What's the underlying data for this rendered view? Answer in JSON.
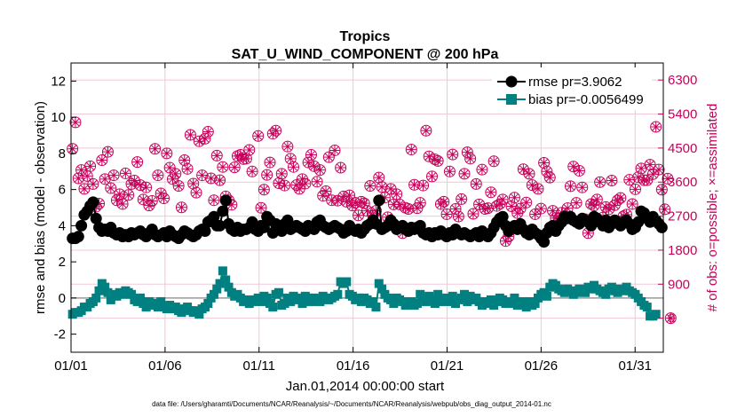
{
  "chart_data": {
    "type": "line",
    "title": "Tropics",
    "subtitle": "SAT_U_WIND_COMPONENT @ 200 hPa",
    "xlabel": "Jan.01,2014 00:00:00 start",
    "ylabel": "rmse and bias (model - observation)",
    "y2label": "# of obs: o=possible; ×=assimilated",
    "footnote": "data file: /Users/gharamti/Documents/NCAR/Reanalysis/~/Documents/NCAR/Reanalysis/webpub/obs_diag_output_2014-01.nc",
    "xlim": [
      1,
      32.5
    ],
    "ylim": [
      -3,
      13
    ],
    "y2lim": [
      -900,
      6750
    ],
    "x_ticks": [
      1,
      6,
      11,
      16,
      21,
      26,
      31
    ],
    "x_tick_labels": [
      "01/01",
      "01/06",
      "01/11",
      "01/16",
      "01/21",
      "01/26",
      "01/31"
    ],
    "y_ticks": [
      -2,
      0,
      2,
      4,
      6,
      8,
      10,
      12
    ],
    "y2_ticks": [
      0,
      900,
      1800,
      2700,
      3600,
      4500,
      5400,
      6300
    ],
    "grid": true,
    "legend_position": "top-right",
    "colors": {
      "rmse": "#000000",
      "bias": "#008080",
      "obs": "#c8005a",
      "zero_line": "#999999",
      "grid": "#f0c8d8"
    },
    "series": [
      {
        "name": "rmse",
        "legend_label": "rmse pr=3.9062",
        "style": "line-circle-markers",
        "values": [
          3.3,
          3.3,
          3.4,
          4.0,
          4.6,
          4.8,
          5.1,
          5.3,
          4.4,
          3.9,
          3.7,
          3.8,
          3.7,
          3.9,
          3.6,
          3.5,
          3.6,
          3.4,
          3.5,
          3.4,
          3.6,
          3.5,
          3.6,
          3.7,
          3.5,
          3.4,
          3.6,
          3.8,
          3.5,
          3.4,
          3.5,
          3.6,
          3.4,
          3.7,
          3.5,
          3.4,
          3.3,
          3.5,
          3.7,
          3.6,
          3.5,
          3.4,
          3.5,
          3.7,
          3.8,
          3.7,
          4.2,
          4.3,
          4.5,
          4.0,
          4.0,
          4.8,
          5.4,
          4.1,
          3.8,
          3.7,
          3.9,
          3.7,
          3.8,
          3.8,
          3.9,
          4.2,
          3.8,
          3.7,
          4.0,
          3.9,
          4.5,
          4.3,
          3.6,
          4.1,
          3.8,
          3.7,
          4.1,
          4.3,
          3.8,
          3.9,
          4.0,
          3.9,
          3.8,
          3.7,
          4.0,
          3.9,
          3.8,
          4.2,
          4.3,
          4.0,
          3.9,
          3.8,
          3.9,
          4.0,
          3.9,
          3.8,
          3.6,
          3.7,
          4.0,
          3.8,
          3.7,
          3.8,
          3.6,
          3.8,
          4.0,
          4.1,
          4.3,
          4.1,
          5.4,
          3.8,
          3.9,
          4.0,
          4.3,
          4.1,
          3.8,
          3.9,
          4.0,
          3.8,
          3.7,
          3.9,
          3.8,
          3.9,
          4.0,
          3.6,
          3.5,
          3.6,
          3.4,
          3.6,
          3.5,
          3.7,
          3.5,
          3.4,
          3.6,
          3.5,
          3.8,
          3.6,
          3.5,
          3.6,
          3.5,
          3.4,
          3.5,
          3.6,
          3.4,
          3.7,
          3.5,
          3.4,
          3.6,
          3.9,
          4.2,
          4.4,
          4.5,
          4.0,
          3.7,
          3.9,
          4.0,
          3.8,
          4.1,
          3.8,
          3.6,
          3.5,
          3.8,
          3.6,
          3.5,
          3.3,
          3.1,
          3.6,
          3.9,
          4.0,
          3.7,
          4.0,
          4.2,
          4.5,
          4.4,
          4.5,
          4.3,
          4.2,
          4.1,
          4.4,
          4.3,
          4.2,
          4.0,
          4.5,
          4.4,
          4.2,
          4.0,
          4.3,
          3.9,
          4.1,
          4.3,
          4.2,
          4.0,
          4.2,
          4.3,
          4.1,
          3.8,
          3.9,
          4.2,
          4.8,
          4.7,
          4.4,
          4.2,
          4.5,
          4.3,
          4.1,
          3.9
        ]
      },
      {
        "name": "bias",
        "legend_label": "bias pr=-0.0056499",
        "style": "line-square-markers",
        "values": [
          -0.9,
          -0.8,
          -0.8,
          -0.7,
          -0.5,
          -0.5,
          -0.3,
          -0.2,
          0.0,
          0.4,
          0.8,
          0.6,
          0.3,
          -0.1,
          0.2,
          0.1,
          0.3,
          0.2,
          0.4,
          0.3,
          0.2,
          -0.1,
          -0.2,
          0.0,
          -0.3,
          -0.5,
          -0.2,
          -0.4,
          -0.3,
          -0.5,
          -0.2,
          -0.5,
          -0.6,
          -0.4,
          -0.6,
          -0.5,
          -0.7,
          -0.8,
          -0.6,
          -0.5,
          -0.7,
          -0.8,
          -0.7,
          -0.9,
          -0.6,
          -0.5,
          -0.3,
          0.0,
          0.2,
          0.5,
          0.8,
          1.5,
          1.0,
          0.6,
          0.3,
          0.1,
          0.2,
          0.0,
          -0.2,
          -0.1,
          -0.3,
          -0.2,
          -0.1,
          0.0,
          -0.2,
          0.1,
          0.0,
          -0.3,
          -0.5,
          0.2,
          0.3,
          -0.4,
          -0.3,
          0.0,
          -0.2,
          0.1,
          -0.1,
          0.0,
          -0.3,
          0.1,
          0.0,
          -0.2,
          0.0,
          -0.1,
          -0.2,
          0.1,
          0.0,
          -0.1,
          0.0,
          0.1,
          0.2,
          0.9,
          0.8,
          0.9,
          0.2,
          0.1,
          -0.1,
          0.0,
          -0.2,
          0.0,
          -0.1,
          -0.3,
          -0.2,
          -0.5,
          0.8,
          0.5,
          0.2,
          0.0,
          -0.1,
          -0.3,
          0.0,
          -0.1,
          -0.2,
          -0.4,
          -0.3,
          -0.2,
          -0.4,
          -0.3,
          0.2,
          0.0,
          -0.2,
          0.1,
          -0.1,
          -0.3,
          0.2,
          -0.2,
          -0.1,
          0.0,
          -0.2,
          0.1,
          -0.3,
          -0.1,
          0.0,
          0.2,
          -0.2,
          0.1,
          -0.1,
          0.0,
          -0.2,
          -0.4,
          -0.2,
          -0.3,
          -0.1,
          -0.4,
          -0.2,
          0.0,
          -0.1,
          -0.3,
          -0.2,
          -0.3,
          0.0,
          -0.4,
          -0.2,
          -0.3,
          -0.5,
          -0.2,
          -0.4,
          -0.3,
          0.0,
          0.2,
          0.3,
          0.1,
          0.6,
          0.8,
          0.7,
          0.5,
          0.4,
          0.3,
          0.5,
          0.4,
          0.2,
          0.3,
          0.5,
          0.4,
          0.3,
          0.6,
          0.5,
          0.7,
          0.5,
          0.4,
          0.3,
          0.2,
          0.5,
          0.6,
          0.4,
          0.3,
          0.5,
          0.4,
          0.6,
          0.4,
          0.3,
          0.2,
          0.0,
          -0.2,
          -0.4,
          -0.5,
          -1.0,
          -1.0,
          -0.9
        ]
      },
      {
        "name": "obs_possible",
        "axis": "right",
        "style": "circle-markers",
        "values": [
          4480,
          5180,
          3700,
          3920,
          3420,
          3760,
          4020,
          3550,
          2950,
          3030,
          4180,
          3680,
          4400,
          3440,
          3780,
          3120,
          3280,
          3020,
          3830,
          3260,
          3550,
          3640,
          4130,
          3520,
          3140,
          3460,
          2980,
          3100,
          4480,
          3780,
          3300,
          3170,
          4360,
          3980,
          3680,
          3820,
          3500,
          2930,
          4180,
          3950,
          4850,
          3560,
          3320,
          4680,
          3780,
          4750,
          4930,
          3700,
          3120,
          4300,
          3650,
          4000,
          3220,
          3120,
          3000,
          3990,
          4290,
          4320,
          4210,
          4220,
          4450,
          3880,
          2410,
          4820,
          2920,
          3400,
          3790,
          4120,
          4880,
          4960,
          3570,
          3820,
          3510,
          4540,
          4220,
          4000,
          3520,
          3420,
          3680,
          3560,
          4120,
          4320,
          4020,
          3610,
          3920,
          3240,
          3360,
          4260,
          3120,
          4440,
          3110,
          3980,
          3220,
          3080,
          3250,
          2980,
          3050,
          2720,
          3080,
          3040,
          2840,
          3500,
          2720,
          2840,
          3720,
          3470,
          3190,
          2670,
          3420,
          3010,
          3280,
          3010,
          2250,
          2920,
          2890,
          4460,
          3530,
          2910,
          3050,
          3510,
          4960,
          4280,
          3750,
          4200,
          4160,
          3020,
          3080,
          2750,
          3880,
          4330,
          2890,
          2690,
          3150,
          3820,
          4390,
          4220,
          2760,
          3550,
          3010,
          3930,
          2890,
          2910,
          3330,
          4150,
          2970,
          3020,
          3140,
          2040,
          2160,
          2960,
          3190,
          2780,
          2900,
          3940,
          3060,
          3820,
          3520,
          2750,
          3420,
          2900,
          4110,
          3880,
          3720,
          2840,
          2650,
          2640,
          2790,
          2700,
          2910,
          3490,
          4010,
          3050,
          3900,
          3460,
          2620,
          2250,
          3020,
          2980,
          3140,
          3600,
          2660,
          2940,
          2880,
          3640,
          2990,
          3120,
          3180,
          2700,
          2740,
          3660,
          3020,
          3410,
          3730,
          3960,
          3650,
          3650,
          4060,
          3810,
          5060,
          3930,
          3400,
          2880,
          3690,
          0
        ]
      },
      {
        "name": "obs_assimilated",
        "axis": "right",
        "style": "x-markers",
        "values": [
          4480,
          5180,
          3700,
          3920,
          3420,
          3760,
          4020,
          3550,
          2950,
          3030,
          4180,
          3680,
          4400,
          3440,
          3780,
          3120,
          3280,
          3020,
          3830,
          3260,
          3550,
          3640,
          4130,
          3520,
          3140,
          3460,
          2980,
          3100,
          4480,
          3780,
          3300,
          3170,
          4360,
          3980,
          3680,
          3820,
          3500,
          2930,
          4180,
          3950,
          4850,
          3560,
          3320,
          4680,
          3780,
          4750,
          4930,
          3700,
          3120,
          4300,
          3650,
          4000,
          3220,
          3120,
          3000,
          3990,
          4290,
          4320,
          4210,
          4220,
          4450,
          3880,
          2410,
          4820,
          2920,
          3400,
          3790,
          4120,
          4880,
          4960,
          3570,
          3820,
          3510,
          4540,
          4220,
          4000,
          3520,
          3420,
          3680,
          3560,
          4120,
          4320,
          4020,
          3610,
          3920,
          3240,
          3360,
          4260,
          3120,
          4440,
          3110,
          3980,
          3220,
          3080,
          3250,
          2980,
          3050,
          2720,
          3080,
          3040,
          2840,
          3500,
          2720,
          2840,
          3720,
          3470,
          3190,
          2670,
          3420,
          3010,
          3280,
          3010,
          2250,
          2920,
          2890,
          4460,
          3530,
          2910,
          3050,
          3510,
          4960,
          4280,
          3750,
          4200,
          4160,
          3020,
          3080,
          2750,
          3880,
          4330,
          2890,
          2690,
          3150,
          3820,
          4390,
          4220,
          2760,
          3550,
          3010,
          3930,
          2890,
          2910,
          3330,
          4150,
          2970,
          3020,
          3140,
          2040,
          2160,
          2960,
          3190,
          2780,
          2900,
          3940,
          3060,
          3820,
          3520,
          2750,
          3420,
          2900,
          4110,
          3880,
          3720,
          2840,
          2650,
          2640,
          2790,
          2700,
          2910,
          3490,
          4010,
          3050,
          3900,
          3460,
          2620,
          2250,
          3020,
          2980,
          3140,
          3600,
          2660,
          2940,
          2880,
          3640,
          2990,
          3120,
          3180,
          2700,
          2740,
          3660,
          3020,
          3410,
          3730,
          3960,
          3650,
          3650,
          4060,
          3810,
          5060,
          3930,
          3400,
          2880,
          3690,
          0
        ]
      }
    ]
  }
}
